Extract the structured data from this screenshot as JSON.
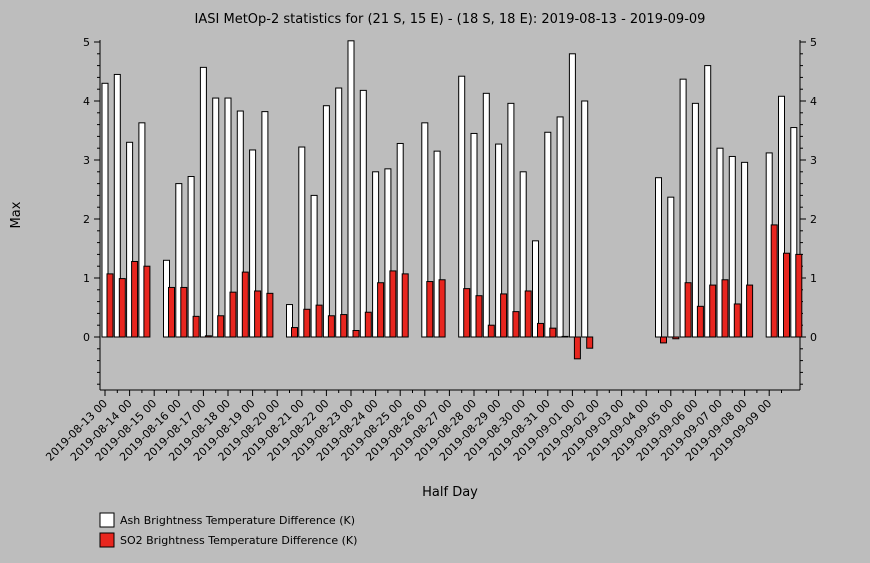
{
  "chart_data": {
    "type": "bar",
    "title": "IASI MetOp-2 statistics for (21 S, 15 E) - (18 S, 18 E): 2019-08-13 - 2019-09-09",
    "xlabel": "Half Day",
    "ylabel": "Max",
    "ylim": [
      -0.9,
      5
    ],
    "yticks": [
      0,
      1,
      2,
      3,
      4,
      5
    ],
    "x_tick_labels": [
      "2019-08-13 00",
      "2019-08-14 00",
      "2019-08-15 00",
      "2019-08-16 00",
      "2019-08-17 00",
      "2019-08-18 00",
      "2019-08-19 00",
      "2019-08-20 00",
      "2019-08-21 00",
      "2019-08-22 00",
      "2019-08-23 00",
      "2019-08-24 00",
      "2019-08-25 00",
      "2019-08-26 00",
      "2019-08-27 00",
      "2019-08-28 00",
      "2019-08-29 00",
      "2019-08-30 00",
      "2019-08-31 00",
      "2019-09-01 00",
      "2019-09-02 00",
      "2019-09-03 00",
      "2019-09-04 00",
      "2019-09-05 00",
      "2019-09-06 00",
      "2019-09-07 00",
      "2019-09-08 00",
      "2019-09-09 00"
    ],
    "series": [
      {
        "name": "Ash Brightness Temperature Difference (K)",
        "color": "#ffffff",
        "values": [
          4.3,
          4.45,
          3.3,
          3.63,
          null,
          1.3,
          2.6,
          2.72,
          4.57,
          4.05,
          4.05,
          3.83,
          3.17,
          3.82,
          null,
          0.55,
          3.22,
          2.4,
          3.92,
          4.22,
          5.02,
          4.18,
          2.8,
          2.85,
          3.28,
          null,
          3.63,
          3.15,
          null,
          4.42,
          3.45,
          4.13,
          3.27,
          3.96,
          2.8,
          1.63,
          3.47,
          3.73,
          4.8,
          4.0,
          null,
          null,
          null,
          null,
          null,
          2.7,
          2.37,
          4.37,
          3.96,
          4.6,
          3.2,
          3.06,
          2.96,
          null,
          3.12,
          4.08,
          3.55
        ]
      },
      {
        "name": "SO2 Brightness Temperature Difference (K)",
        "color": "#e8261f",
        "values": [
          1.07,
          0.99,
          1.28,
          1.2,
          null,
          0.84,
          0.84,
          0.35,
          0.02,
          0.36,
          0.76,
          1.1,
          0.78,
          0.74,
          null,
          0.16,
          0.47,
          0.54,
          0.36,
          0.38,
          0.11,
          0.42,
          0.92,
          1.12,
          1.07,
          null,
          0.94,
          0.97,
          null,
          0.82,
          0.7,
          0.2,
          0.73,
          0.43,
          0.78,
          0.23,
          0.15,
          0.01,
          -0.37,
          -0.19,
          null,
          null,
          null,
          null,
          null,
          -0.1,
          -0.03,
          0.92,
          0.52,
          0.88,
          0.97,
          0.56,
          0.88,
          null,
          1.9,
          1.42,
          1.4
        ]
      }
    ],
    "legend_position": "bottom-left",
    "grid": false
  }
}
